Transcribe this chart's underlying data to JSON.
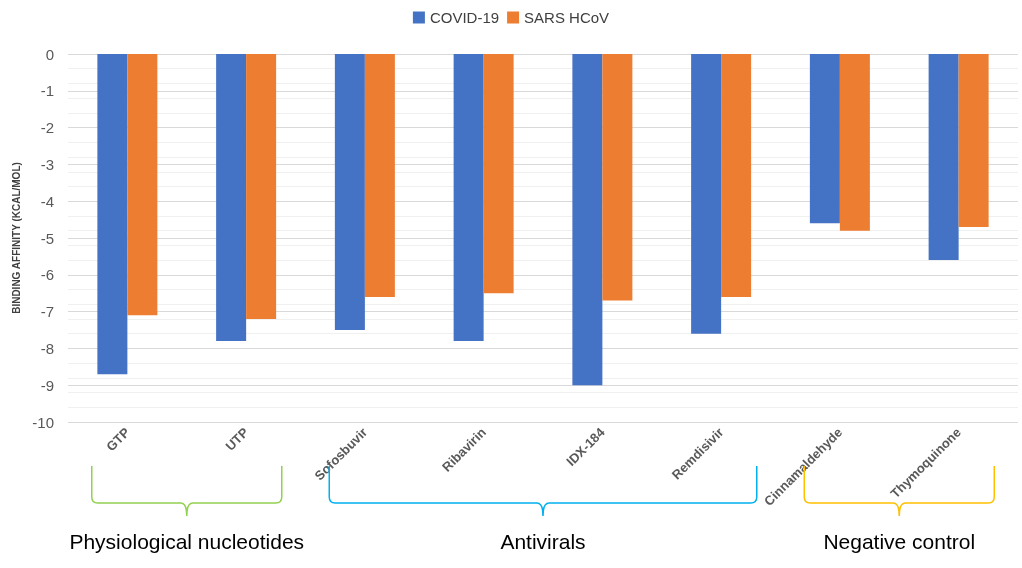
{
  "chart_data": {
    "type": "bar",
    "ylabel": "BINDING AFFINITY (KCAL/MOL)",
    "categories": [
      "GTP",
      "UTP",
      "Sofosbuvir",
      "Ribavirin",
      "IDX-184",
      "Remdisivir",
      "Cinnamaldehyde",
      "Thymoquinone"
    ],
    "series": [
      {
        "name": "COVID-19",
        "color": "#4472c4",
        "values": [
          -8.7,
          -7.8,
          -7.5,
          -7.8,
          -9.0,
          -7.6,
          -4.6,
          -5.6
        ]
      },
      {
        "name": "SARS HCoV",
        "color": "#ed7d31",
        "values": [
          -7.1,
          -7.2,
          -6.6,
          -6.5,
          -6.7,
          -6.6,
          -4.8,
          -4.7
        ]
      }
    ],
    "ylim": [
      -10,
      0
    ],
    "yticks": [
      -10,
      -9,
      -8,
      -7,
      -6,
      -5,
      -4,
      -3,
      -2,
      -1,
      0
    ],
    "grid": true,
    "legend": "top",
    "annotations": [
      "Physiological nucleotides",
      "Antivirals",
      "Negative control"
    ]
  }
}
